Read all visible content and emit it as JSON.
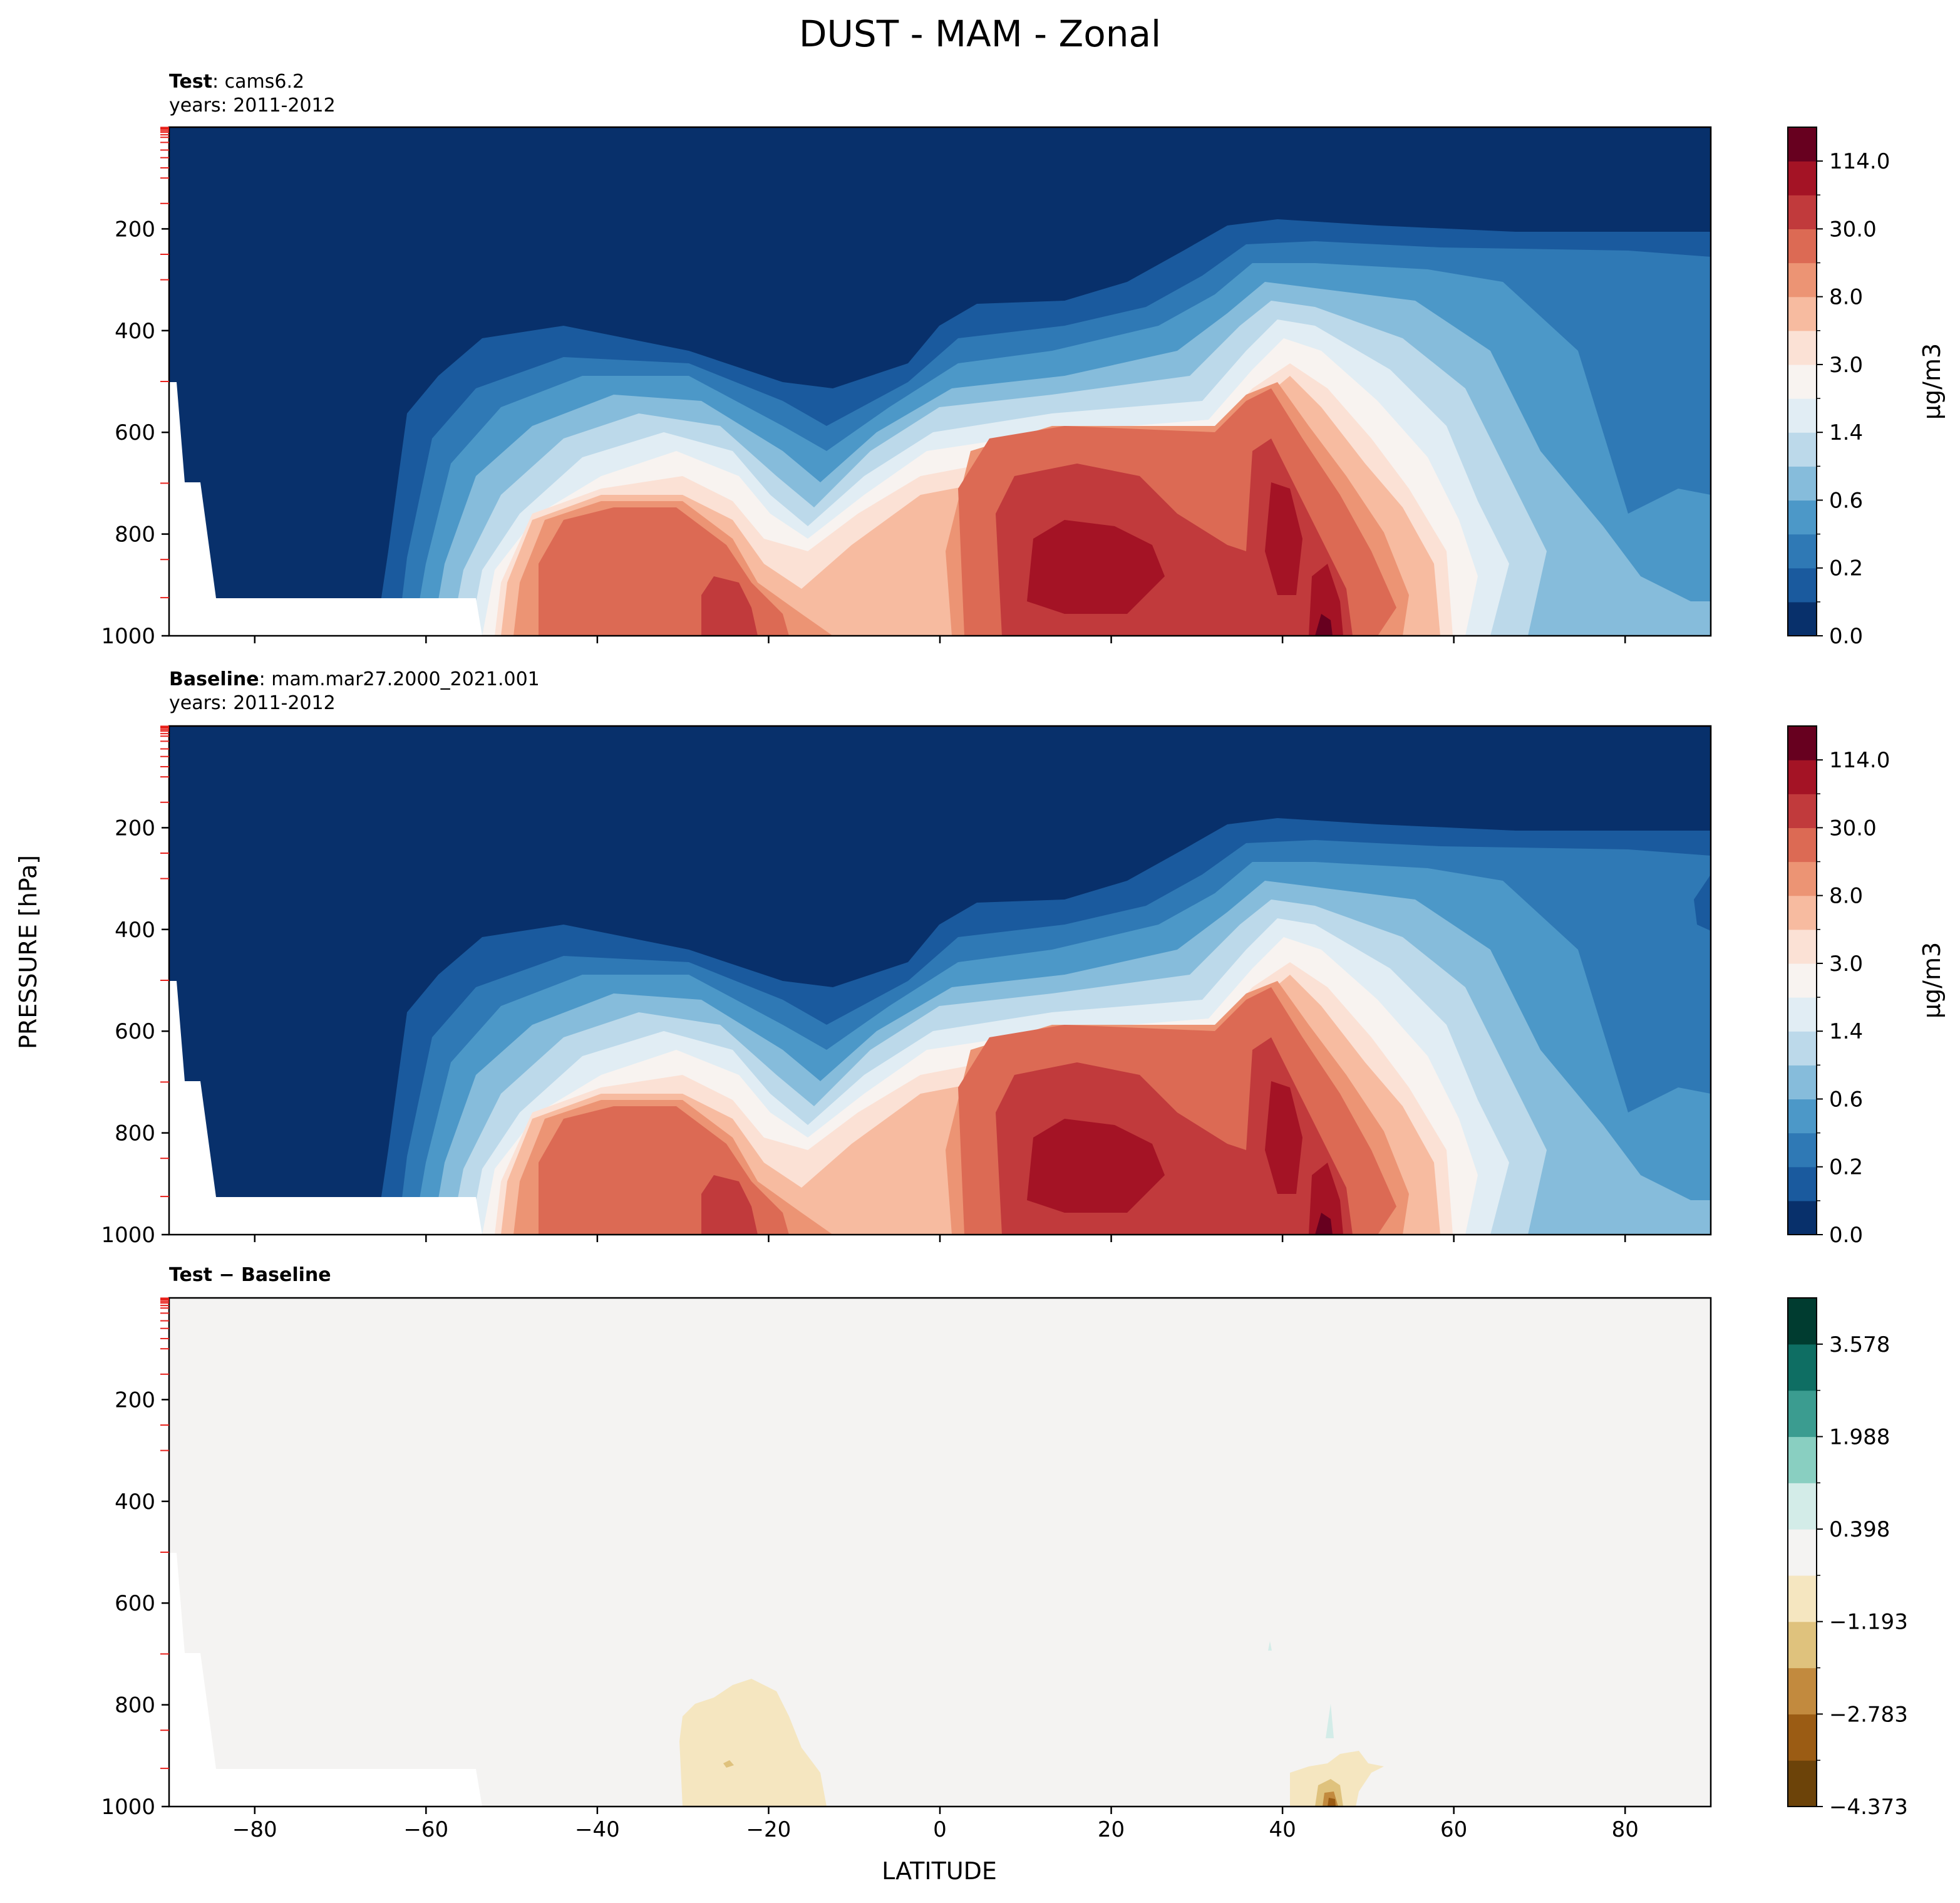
{
  "figure": {
    "suptitle": "DUST - MAM - Zonal",
    "ylabel": "PRESSURE [hPa]",
    "xlabel": "LATITUDE"
  },
  "chart_data": [
    {
      "type": "heatmap",
      "panel": "test",
      "title_bold": "Test",
      "title_text": ": cams6.2",
      "subtitle": "years: 2011-2012",
      "x_ticks": [
        "−80",
        "−60",
        "−40",
        "−20",
        "0",
        "20",
        "40",
        "60",
        "80"
      ],
      "y_ticks": [
        "200",
        "400",
        "600",
        "800",
        "1000"
      ],
      "xlim": [
        -90,
        90
      ],
      "ylim": [
        1000,
        0
      ],
      "colorbar": {
        "label": "μg/m3",
        "tick_labels": [
          "0.0",
          "0.2",
          "0.6",
          "1.4",
          "3.0",
          "8.0",
          "30.0",
          "114.0"
        ],
        "colors": [
          "#08306b",
          "#1a5a9e",
          "#2f79b5",
          "#4c98c8",
          "#86bcdb",
          "#bcd9ea",
          "#e1edf4",
          "#f8f3f0",
          "#fbe1d5",
          "#f7bba0",
          "#ec9474",
          "#dc6a54",
          "#c13a3c",
          "#a41325",
          "#67001f"
        ]
      }
    },
    {
      "type": "heatmap",
      "panel": "baseline",
      "title_bold": "Baseline",
      "title_text": ": mam.mar27.2000_2021.001",
      "subtitle": "years: 2011-2012",
      "x_ticks": [
        "−80",
        "−60",
        "−40",
        "−20",
        "0",
        "20",
        "40",
        "60",
        "80"
      ],
      "y_ticks": [
        "200",
        "400",
        "600",
        "800",
        "1000"
      ],
      "xlim": [
        -90,
        90
      ],
      "ylim": [
        1000,
        0
      ],
      "colorbar": {
        "label": "μg/m3",
        "tick_labels": [
          "0.0",
          "0.2",
          "0.6",
          "1.4",
          "3.0",
          "8.0",
          "30.0",
          "114.0"
        ],
        "colors": [
          "#08306b",
          "#1a5a9e",
          "#2f79b5",
          "#4c98c8",
          "#86bcdb",
          "#bcd9ea",
          "#e1edf4",
          "#f8f3f0",
          "#fbe1d5",
          "#f7bba0",
          "#ec9474",
          "#dc6a54",
          "#c13a3c",
          "#a41325",
          "#67001f"
        ]
      }
    },
    {
      "type": "heatmap",
      "panel": "difference",
      "title_bold": "Test − Baseline",
      "x_ticks": [
        "−80",
        "−60",
        "−40",
        "−20",
        "0",
        "20",
        "40",
        "60",
        "80"
      ],
      "y_ticks": [
        "200",
        "400",
        "600",
        "800",
        "1000"
      ],
      "xlim": [
        -90,
        90
      ],
      "ylim": [
        1000,
        0
      ],
      "colorbar": {
        "tick_labels": [
          "−4.373",
          "−2.783",
          "−1.193",
          "0.398",
          "1.988",
          "3.578"
        ],
        "colors": [
          "#6c4309",
          "#9b5c14",
          "#c28a3e",
          "#dfc27d",
          "#f5e6c0",
          "#f4f3f2",
          "#d3ece8",
          "#89cfc1",
          "#3b9c90",
          "#0e6e63",
          "#003c30"
        ]
      }
    }
  ]
}
